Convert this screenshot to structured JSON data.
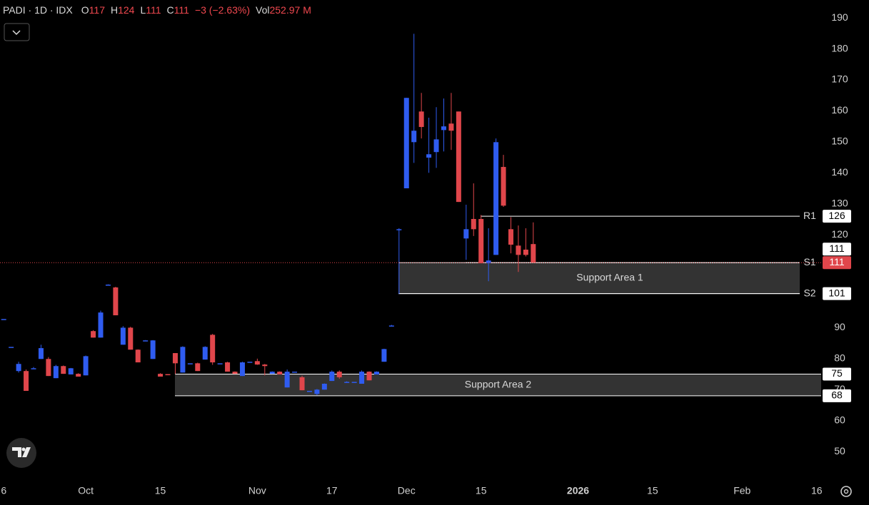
{
  "header": {
    "symbol": "PADI · 1D · IDX",
    "open_label": "O",
    "open": 117,
    "high_label": "H",
    "high": 124,
    "low_label": "L",
    "low": 111,
    "close_label": "C",
    "close": 111,
    "change": "−3 (−2.63%)",
    "volume_label": "Vol",
    "volume": "252.97 M"
  },
  "chart_data": {
    "type": "candlestick",
    "open": [
      92.8,
      83.8,
      76.0,
      76.0,
      76.9,
      79.9,
      79.9,
      73.7,
      77.6,
      74.9,
      75.1,
      74.6,
      88.9,
      86.8,
      103.9,
      103.0,
      84.5,
      90.0,
      82.9,
      85.9,
      79.9,
      75.1,
      75.0,
      81.8,
      75.5,
      78.5,
      78.5,
      79.7,
      87.7,
      78.5,
      78.8,
      75.8,
      74.4,
      79.0,
      79.2,
      78.1,
      75.1,
      75.8,
      70.7,
      75.8,
      74.0,
      69.6,
      68.6,
      70.0,
      72.8,
      75.8,
      72.5,
      72.5,
      71.9,
      75.8,
      74.9,
      79.0,
      90.7,
      121.6,
      135.0,
      149.9,
      159.8,
      144.9,
      146.7,
      153.8,
      155.9,
      159.8,
      118.8,
      125.1,
      125.1,
      110.8,
      113.5,
      141.9,
      121.8,
      116.5,
      115.2,
      117
    ],
    "high": [
      92.8,
      83.8,
      79.0,
      76.5,
      77.3,
      84.5,
      80.5,
      78.0,
      77.8,
      77.0,
      75.3,
      81.0,
      89.2,
      95.5,
      104.0,
      103.2,
      90.5,
      90.3,
      83.0,
      86.0,
      86.0,
      75.3,
      75.0,
      81.8,
      84.0,
      78.5,
      78.7,
      84.0,
      88.0,
      78.5,
      79.0,
      75.9,
      79.0,
      79.0,
      80.0,
      78.3,
      75.9,
      75.9,
      76.5,
      75.8,
      74.5,
      69.6,
      70.2,
      72.0,
      76.2,
      76.2,
      72.7,
      72.5,
      76.2,
      75.9,
      75.9,
      83.2,
      90.9,
      122.1,
      164.2,
      184.9,
      165.8,
      157.8,
      161.2,
      164.0,
      165.8,
      159.8,
      129.7,
      136.6,
      126.4,
      122.1,
      151.1,
      145.8,
      125.7,
      123.0,
      122.1,
      124
    ],
    "low": [
      92.8,
      83.8,
      75.5,
      69.6,
      76.9,
      79.9,
      74.4,
      73.7,
      75.1,
      74.9,
      74.2,
      74.6,
      86.8,
      86.8,
      103.9,
      94.0,
      84.5,
      82.9,
      78.8,
      85.9,
      79.9,
      74.2,
      74.8,
      75.0,
      75.5,
      78.5,
      76.0,
      79.7,
      78.0,
      78.5,
      75.8,
      75.1,
      74.4,
      79.0,
      78.0,
      74.6,
      75.1,
      74.9,
      70.7,
      75.8,
      69.8,
      69.6,
      68.2,
      70.0,
      72.8,
      73.5,
      72.3,
      72.5,
      71.9,
      73.0,
      74.9,
      79.0,
      90.5,
      100.9,
      135.0,
      143.2,
      151.1,
      140.0,
      141.6,
      146.9,
      147.4,
      130.6,
      111.9,
      119.6,
      110.8,
      105.0,
      113.5,
      129.0,
      114.0,
      108.0,
      113.0,
      111
    ],
    "close": [
      92.8,
      83.8,
      78.3,
      69.6,
      76.9,
      83.4,
      74.4,
      77.6,
      75.1,
      76.9,
      74.2,
      80.8,
      86.8,
      94.9,
      103.9,
      94.0,
      90.0,
      82.9,
      78.8,
      85.9,
      85.9,
      74.2,
      74.8,
      78.5,
      83.8,
      78.5,
      76.0,
      83.8,
      78.8,
      78.5,
      75.8,
      75.1,
      78.8,
      79.0,
      78.1,
      77.6,
      75.8,
      74.9,
      75.8,
      75.8,
      69.8,
      69.6,
      70.0,
      71.9,
      75.8,
      74.0,
      72.5,
      72.5,
      75.8,
      73.0,
      75.8,
      83.1,
      90.7,
      121.8,
      164.2,
      153.6,
      154.8,
      146.0,
      150.8,
      155.0,
      153.6,
      130.6,
      121.8,
      121.8,
      110.8,
      111.7,
      149.9,
      129.4,
      116.8,
      113.5,
      113.5,
      111
    ],
    "up_color": "#2f5cf0",
    "down_color": "#e0464b",
    "xlim": [
      -0.5,
      109.6
    ],
    "xticks": [
      {
        "value": 0,
        "label": "6"
      },
      {
        "value": 11,
        "label": "Oct"
      },
      {
        "value": 21,
        "label": "15"
      },
      {
        "value": 34,
        "label": "Nov"
      },
      {
        "value": 44,
        "label": "17"
      },
      {
        "value": 54,
        "label": "Dec"
      },
      {
        "value": 64,
        "label": "15"
      },
      {
        "value": 77,
        "label": "2026"
      },
      {
        "value": 87,
        "label": "15"
      },
      {
        "value": 99,
        "label": "Feb"
      },
      {
        "value": 109,
        "label": "16"
      }
    ],
    "ylim": [
      41.5,
      195.8
    ],
    "yticks": [
      50,
      60,
      70,
      80,
      90,
      120,
      130,
      140,
      150,
      160,
      170,
      180,
      190
    ],
    "grid": false,
    "levels": [
      {
        "name": "R1",
        "value": 126
      },
      {
        "name": "S1",
        "value": 111
      },
      {
        "name": "S2",
        "value": 101
      }
    ],
    "zones": [
      {
        "label": "Support Area 1",
        "top": 111,
        "bottom": 101
      },
      {
        "label": "Support Area 2",
        "top": 75,
        "bottom": 68
      }
    ]
  }
}
